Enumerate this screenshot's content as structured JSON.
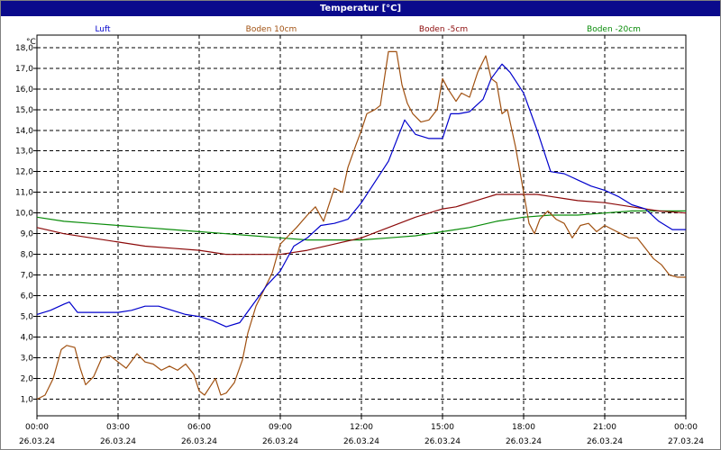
{
  "title": "Temperatur [°C]",
  "chart_data": {
    "type": "line",
    "title": "Temperatur [°C]",
    "ylabel": "°C",
    "xlabel": "",
    "ylim": [
      0.2,
      18.6
    ],
    "grid": true,
    "legend": "top",
    "y_ticks": [
      "1,0",
      "2,0",
      "3,0",
      "4,0",
      "5,0",
      "6,0",
      "7,0",
      "8,0",
      "9,0",
      "10,0",
      "11,0",
      "12,0",
      "13,0",
      "14,0",
      "15,0",
      "16,0",
      "17,0",
      "18,0"
    ],
    "x_ticks": [
      {
        "time": "00:00",
        "date": "26.03.24"
      },
      {
        "time": "03:00",
        "date": "26.03.24"
      },
      {
        "time": "06:00",
        "date": "26.03.24"
      },
      {
        "time": "09:00",
        "date": "26.03.24"
      },
      {
        "time": "12:00",
        "date": "26.03.24"
      },
      {
        "time": "15:00",
        "date": "26.03.24"
      },
      {
        "time": "18:00",
        "date": "26.03.24"
      },
      {
        "time": "21:00",
        "date": "26.03.24"
      },
      {
        "time": "00:00",
        "date": "27.03.24"
      }
    ],
    "series": [
      {
        "name": "Luft",
        "color": "#0000cc",
        "x": [
          0,
          0.5,
          1,
          1.2,
          1.5,
          1.8,
          2.5,
          3,
          3.5,
          4,
          4.5,
          5,
          5.5,
          6,
          6.5,
          7,
          7.5,
          8,
          8.5,
          9,
          9.5,
          10,
          10.5,
          11,
          11.5,
          12,
          12.5,
          13,
          13.3,
          13.6,
          14,
          14.5,
          15,
          15.3,
          15.6,
          16,
          16.5,
          16.8,
          17.2,
          17.5,
          18,
          18.5,
          19,
          19.5,
          20,
          20.5,
          21,
          21.5,
          22,
          22.5,
          23,
          23.5,
          24
        ],
        "y": [
          5.1,
          5.3,
          5.6,
          5.7,
          5.2,
          5.2,
          5.2,
          5.2,
          5.3,
          5.5,
          5.5,
          5.3,
          5.1,
          5.0,
          4.8,
          4.5,
          4.7,
          5.6,
          6.5,
          7.2,
          8.4,
          8.8,
          9.4,
          9.5,
          9.7,
          10.5,
          11.5,
          12.5,
          13.5,
          14.5,
          13.8,
          13.6,
          13.6,
          14.8,
          14.8,
          14.9,
          15.5,
          16.5,
          17.2,
          16.8,
          15.8,
          14.0,
          12.0,
          11.9,
          11.6,
          11.3,
          11.1,
          10.8,
          10.4,
          10.2,
          9.6,
          9.2,
          9.2
        ]
      },
      {
        "name": "Boden 10cm",
        "color": "#a05010",
        "x": [
          0,
          0.3,
          0.6,
          0.9,
          1.1,
          1.4,
          1.6,
          1.8,
          2.1,
          2.4,
          2.7,
          3,
          3.3,
          3.7,
          4,
          4.3,
          4.6,
          4.9,
          5.2,
          5.5,
          5.8,
          6,
          6.2,
          6.4,
          6.6,
          6.8,
          7,
          7.3,
          7.6,
          7.8,
          8.1,
          8.4,
          8.7,
          9,
          9.3,
          9.6,
          10,
          10.3,
          10.6,
          11,
          11.3,
          11.5,
          11.8,
          12,
          12.2,
          12.5,
          12.7,
          13,
          13.3,
          13.5,
          13.7,
          13.9,
          14.2,
          14.5,
          14.8,
          15,
          15.2,
          15.5,
          15.7,
          16,
          16.3,
          16.6,
          16.8,
          17,
          17.2,
          17.4,
          17.7,
          18,
          18.2,
          18.4,
          18.6,
          18.9,
          19.2,
          19.5,
          19.8,
          20.1,
          20.4,
          20.7,
          21,
          21.3,
          21.6,
          21.9,
          22.2,
          22.5,
          22.8,
          23.1,
          23.4,
          23.7,
          24
        ],
        "y": [
          1.0,
          1.2,
          2.0,
          3.4,
          3.6,
          3.5,
          2.5,
          1.7,
          2.1,
          3.0,
          3.1,
          2.8,
          2.5,
          3.2,
          2.8,
          2.7,
          2.4,
          2.6,
          2.4,
          2.7,
          2.2,
          1.4,
          1.2,
          1.6,
          2.0,
          1.2,
          1.3,
          1.8,
          2.9,
          4.2,
          5.5,
          6.3,
          7.1,
          8.5,
          8.9,
          9.3,
          9.9,
          10.3,
          9.6,
          11.2,
          11.0,
          12.2,
          13.3,
          14.0,
          14.8,
          15.0,
          15.2,
          17.8,
          17.8,
          16.2,
          15.3,
          14.8,
          14.4,
          14.5,
          15.0,
          16.5,
          16.0,
          15.4,
          15.8,
          15.6,
          16.8,
          17.6,
          16.5,
          16.3,
          14.8,
          15.0,
          13.2,
          11.0,
          9.5,
          9.0,
          9.7,
          10.1,
          9.7,
          9.5,
          8.8,
          9.4,
          9.5,
          9.1,
          9.4,
          9.2,
          9.0,
          8.8,
          8.8,
          8.3,
          7.8,
          7.5,
          7.0,
          6.9,
          6.9
        ]
      },
      {
        "name": "Boden -5cm",
        "color": "#8c0a0a",
        "x": [
          0,
          1,
          2,
          3,
          4,
          5,
          6,
          6.5,
          7,
          7.5,
          8,
          8.5,
          9,
          10,
          11,
          12,
          13,
          14,
          14.5,
          15,
          15.5,
          16,
          16.5,
          17,
          17.5,
          18,
          18.5,
          19,
          19.5,
          20,
          21,
          22,
          23,
          24
        ],
        "y": [
          9.3,
          9.0,
          8.8,
          8.6,
          8.4,
          8.3,
          8.2,
          8.1,
          8.0,
          8.0,
          8.0,
          8.0,
          8.0,
          8.2,
          8.5,
          8.8,
          9.3,
          9.8,
          10.0,
          10.2,
          10.3,
          10.5,
          10.7,
          10.9,
          10.9,
          10.9,
          10.9,
          10.8,
          10.7,
          10.6,
          10.5,
          10.3,
          10.1,
          10.0
        ]
      },
      {
        "name": "Boden -20cm",
        "color": "#0a8c0a",
        "x": [
          0,
          1,
          2,
          3,
          4,
          5,
          6,
          7,
          8,
          9,
          10,
          11,
          12,
          13,
          14,
          15,
          16,
          17,
          18,
          19,
          20,
          21,
          22,
          23,
          24
        ],
        "y": [
          9.8,
          9.6,
          9.5,
          9.4,
          9.3,
          9.2,
          9.1,
          9.0,
          8.9,
          8.8,
          8.7,
          8.7,
          8.7,
          8.8,
          8.9,
          9.1,
          9.3,
          9.6,
          9.8,
          9.9,
          9.9,
          10.0,
          10.1,
          10.1,
          10.1
        ]
      }
    ]
  }
}
